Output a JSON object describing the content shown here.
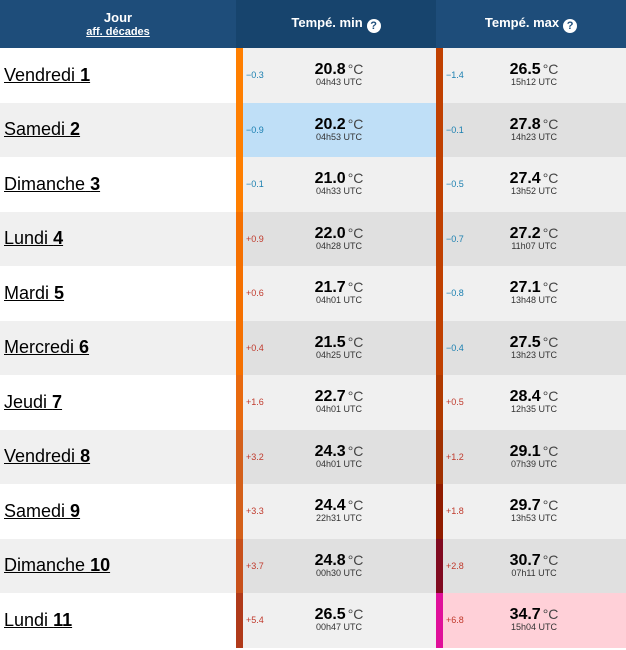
{
  "header": {
    "day_title": "Jour",
    "day_link": "aff. décades",
    "min_title": "Tempé. min",
    "max_title": "Tempé. max",
    "help_glyph": "?"
  },
  "unit": "°C",
  "rows": [
    {
      "day": "Vendredi",
      "num": "1",
      "min": {
        "anom": "−0.3",
        "sign": "neg",
        "value": "20.8",
        "time": "04h43 UTC",
        "bar": "#ff7f00"
      },
      "max": {
        "anom": "−1.4",
        "sign": "neg",
        "value": "26.5",
        "time": "15h12 UTC",
        "bar": "#c04000"
      }
    },
    {
      "day": "Samedi",
      "num": "2",
      "min": {
        "anom": "−0.9",
        "sign": "neg",
        "value": "20.2",
        "time": "04h53 UTC",
        "bar": "#ff7f00"
      },
      "max": {
        "anom": "−0.1",
        "sign": "neg",
        "value": "27.8",
        "time": "14h23 UTC",
        "bar": "#c04000"
      },
      "highlight": "min"
    },
    {
      "day": "Dimanche",
      "num": "3",
      "min": {
        "anom": "−0.1",
        "sign": "neg",
        "value": "21.0",
        "time": "04h33 UTC",
        "bar": "#ff7f00"
      },
      "max": {
        "anom": "−0.5",
        "sign": "neg",
        "value": "27.4",
        "time": "13h52 UTC",
        "bar": "#c04000"
      }
    },
    {
      "day": "Lundi",
      "num": "4",
      "min": {
        "anom": "+0.9",
        "sign": "pos",
        "value": "22.0",
        "time": "04h28 UTC",
        "bar": "#f57000"
      },
      "max": {
        "anom": "−0.7",
        "sign": "neg",
        "value": "27.2",
        "time": "11h07 UTC",
        "bar": "#c04000"
      }
    },
    {
      "day": "Mardi",
      "num": "5",
      "min": {
        "anom": "+0.6",
        "sign": "pos",
        "value": "21.7",
        "time": "04h01 UTC",
        "bar": "#f57000"
      },
      "max": {
        "anom": "−0.8",
        "sign": "neg",
        "value": "27.1",
        "time": "13h48 UTC",
        "bar": "#c04000"
      }
    },
    {
      "day": "Mercredi",
      "num": "6",
      "min": {
        "anom": "+0.4",
        "sign": "pos",
        "value": "21.5",
        "time": "04h25 UTC",
        "bar": "#f57000"
      },
      "max": {
        "anom": "−0.4",
        "sign": "neg",
        "value": "27.5",
        "time": "13h23 UTC",
        "bar": "#c04000"
      }
    },
    {
      "day": "Jeudi",
      "num": "7",
      "min": {
        "anom": "+1.6",
        "sign": "pos",
        "value": "22.7",
        "time": "04h01 UTC",
        "bar": "#e86a10"
      },
      "max": {
        "anom": "+0.5",
        "sign": "pos",
        "value": "28.4",
        "time": "12h35 UTC",
        "bar": "#b03a00"
      }
    },
    {
      "day": "Vendredi",
      "num": "8",
      "min": {
        "anom": "+3.2",
        "sign": "pos",
        "value": "24.3",
        "time": "04h01 UTC",
        "bar": "#d4601a"
      },
      "max": {
        "anom": "+1.2",
        "sign": "pos",
        "value": "29.1",
        "time": "07h39 UTC",
        "bar": "#a03000"
      }
    },
    {
      "day": "Samedi",
      "num": "9",
      "min": {
        "anom": "+3.3",
        "sign": "pos",
        "value": "24.4",
        "time": "22h31 UTC",
        "bar": "#d4601a"
      },
      "max": {
        "anom": "+1.8",
        "sign": "pos",
        "value": "29.7",
        "time": "13h53 UTC",
        "bar": "#901c00"
      }
    },
    {
      "day": "Dimanche",
      "num": "10",
      "min": {
        "anom": "+3.7",
        "sign": "pos",
        "value": "24.8",
        "time": "00h30 UTC",
        "bar": "#c8501a"
      },
      "max": {
        "anom": "+2.8",
        "sign": "pos",
        "value": "30.7",
        "time": "07h11 UTC",
        "bar": "#800a20"
      }
    },
    {
      "day": "Lundi",
      "num": "11",
      "min": {
        "anom": "+5.4",
        "sign": "pos",
        "value": "26.5",
        "time": "00h47 UTC",
        "bar": "#b03a1a"
      },
      "max": {
        "anom": "+6.8",
        "sign": "pos",
        "value": "34.7",
        "time": "15h04 UTC",
        "bar": "#e0109a"
      },
      "highlight": "max"
    }
  ]
}
